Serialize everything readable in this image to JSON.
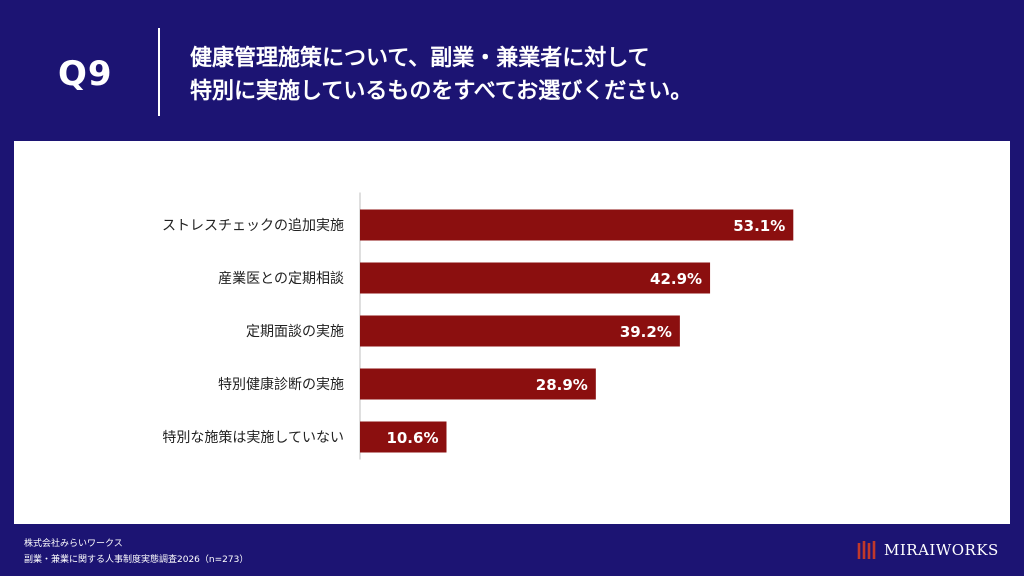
{
  "header": {
    "question_number": "Q9",
    "question_line1": "健康管理施策について、副業・兼業者に対して",
    "question_line2": "特別に実施しているものをすべてお選びください。"
  },
  "chart_data": {
    "type": "bar",
    "orientation": "horizontal",
    "categories": [
      "ストレスチェックの追加実施",
      "産業医との定期相談",
      "定期面談の実施",
      "特別健康診断の実施",
      "特別な施策は実施していない"
    ],
    "values": [
      53.1,
      42.9,
      39.2,
      28.9,
      10.6
    ],
    "value_labels": [
      "53.1%",
      "42.9%",
      "39.2%",
      "28.9%",
      "10.6%"
    ],
    "unit": "%",
    "xlim": [
      0,
      75
    ],
    "bar_color": "#8b0f0f",
    "label_color": "#ffffff",
    "grid": false
  },
  "footer": {
    "company": "株式会社みらいワークス",
    "survey": "副業・兼業に関する人事制度実態調査2026（n=273）"
  },
  "logo": {
    "text": "MIRAIWORKS",
    "mark_color": "#c0392b"
  }
}
